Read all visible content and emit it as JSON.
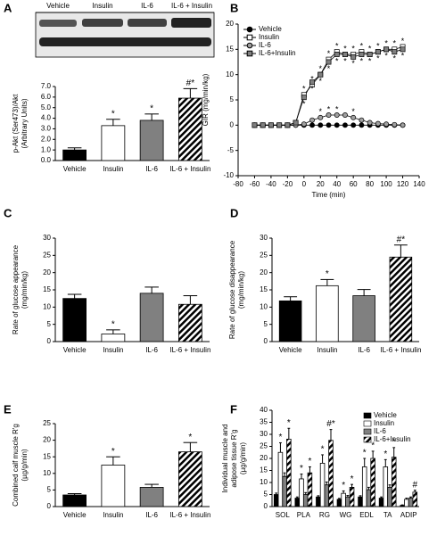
{
  "chart_data": [
    {
      "type": "bar",
      "panel": "A",
      "blot_labels": [
        "Vehicle",
        "Insulin",
        "IL-6",
        "IL-6 + Insulin"
      ],
      "ylabel": [
        "p-Akt (Ser473)/Akt",
        "(Arbitrary Units)"
      ],
      "categories": [
        "Vehicle",
        "Insulin",
        "IL-6",
        "IL-6 + Insulin"
      ],
      "values": [
        1.0,
        3.3,
        3.8,
        5.9
      ],
      "errors": [
        0.2,
        0.6,
        0.6,
        0.9
      ],
      "annotations": [
        null,
        "*",
        "*",
        "#*"
      ],
      "colors": [
        "#000000",
        "#ffffff",
        "#808080",
        "#ffffff"
      ],
      "hatched": [
        false,
        false,
        false,
        true
      ],
      "ylim": [
        0,
        7
      ],
      "yticks": [
        {
          "value": 0,
          "label": "0.0"
        },
        {
          "value": 1,
          "label": "1.0"
        },
        {
          "value": 2,
          "label": "2.0"
        },
        {
          "value": 3,
          "label": "3.0"
        },
        {
          "value": 4,
          "label": "4.0"
        },
        {
          "value": 5,
          "label": "5.0"
        },
        {
          "value": 6,
          "label": "6.0"
        },
        {
          "value": 7,
          "label": "7.0"
        }
      ]
    },
    {
      "type": "line",
      "panel": "B",
      "xlabel": "Time (min)",
      "ylabel": [
        "GIR (mg/min/kg)"
      ],
      "legend": "top-left",
      "x": [
        -60,
        -50,
        -40,
        -30,
        -20,
        -10,
        0,
        10,
        20,
        30,
        40,
        50,
        60,
        70,
        80,
        90,
        100,
        110,
        120
      ],
      "series": [
        {
          "name": "Vehicle",
          "color": "#000000",
          "marker": "circle",
          "values": [
            0,
            0,
            0,
            0,
            0,
            0,
            0,
            0,
            0,
            0,
            0,
            0,
            0,
            0,
            0,
            0,
            0,
            0,
            0
          ],
          "annotations": [
            null,
            null,
            null,
            null,
            null,
            null,
            null,
            null,
            null,
            null,
            null,
            null,
            null,
            null,
            null,
            null,
            null,
            null,
            null
          ],
          "annotation_position": "above"
        },
        {
          "name": "Insulin",
          "color": "#ffffff",
          "marker": "square",
          "values": [
            0,
            0,
            0,
            0,
            0,
            0.5,
            6,
            8,
            10,
            13,
            14.5,
            14,
            14,
            14.5,
            14,
            14.5,
            15,
            15,
            15.5
          ],
          "annotations": [
            null,
            null,
            null,
            null,
            null,
            null,
            "*",
            "*",
            "*",
            "*",
            "*",
            "*",
            "*",
            "*",
            "*",
            "*",
            "*",
            "*",
            "*"
          ],
          "annotation_position": "above"
        },
        {
          "name": "IL-6",
          "color": "#a0a0a0",
          "marker": "circle",
          "values": [
            0,
            0,
            0,
            0,
            0,
            0,
            0.2,
            1,
            1.5,
            2,
            2,
            2,
            1.5,
            1,
            0.5,
            0.3,
            0.2,
            0.1,
            0
          ],
          "annotations": [
            null,
            null,
            null,
            null,
            null,
            null,
            null,
            null,
            "*",
            "*",
            "*",
            null,
            "*",
            null,
            null,
            null,
            null,
            null,
            null
          ],
          "annotation_position": "above"
        },
        {
          "name": "IL-6+Insulin",
          "color": "#808080",
          "marker": "square",
          "values": [
            0,
            0,
            0,
            0,
            0,
            0.5,
            5.5,
            8.5,
            10,
            12.5,
            14,
            14,
            13.5,
            14,
            14,
            14.5,
            15,
            14.5,
            15
          ],
          "annotations": [
            null,
            null,
            null,
            null,
            null,
            null,
            "*",
            "*",
            "*",
            "*",
            "*",
            "*",
            "*",
            "*",
            "*",
            "*",
            "*",
            "*",
            "*"
          ],
          "annotation_position": "below"
        }
      ],
      "xlim": [
        -80,
        140
      ],
      "xticks": [
        -80,
        -60,
        -40,
        -20,
        0,
        20,
        40,
        60,
        80,
        100,
        120,
        140
      ],
      "ylim": [
        -10,
        20
      ],
      "yticks": [
        -10,
        -5,
        0,
        5,
        10,
        15,
        20
      ]
    },
    {
      "type": "bar",
      "panel": "C",
      "ylabel": [
        "Rate of glucose appearance",
        "(mg/min/kg)"
      ],
      "categories": [
        "Vehicle",
        "Insulin",
        "IL-6",
        "IL-6 + Insulin"
      ],
      "values": [
        12.5,
        2.2,
        14,
        10.8
      ],
      "errors": [
        1.2,
        1.2,
        1.8,
        2.5
      ],
      "annotations": [
        null,
        "*",
        null,
        null
      ],
      "colors": [
        "#000000",
        "#ffffff",
        "#808080",
        "#ffffff"
      ],
      "hatched": [
        false,
        false,
        false,
        true
      ],
      "ylim": [
        0,
        30
      ],
      "yticks": [
        0,
        5,
        10,
        15,
        20,
        25,
        30
      ]
    },
    {
      "type": "bar",
      "panel": "D",
      "ylabel": [
        "Rate of glucose disappearance",
        "(mg/min/kg)"
      ],
      "categories": [
        "Vehicle",
        "Insulin",
        "IL-6",
        "IL-6 + Insulin"
      ],
      "values": [
        11.8,
        16.2,
        13.3,
        24.5
      ],
      "errors": [
        1.2,
        1.8,
        1.8,
        3.5
      ],
      "annotations": [
        null,
        "*",
        null,
        "#*"
      ],
      "colors": [
        "#000000",
        "#ffffff",
        "#808080",
        "#ffffff"
      ],
      "hatched": [
        false,
        false,
        false,
        true
      ],
      "ylim": [
        0,
        30
      ],
      "yticks": [
        0,
        5,
        10,
        15,
        20,
        25,
        30
      ]
    },
    {
      "type": "bar",
      "panel": "E",
      "ylabel": [
        "Combined calf muscle R'g",
        "(µg/g/min)"
      ],
      "categories": [
        "Vehicle",
        "Insulin",
        "IL-6",
        "IL-6 + Insulin"
      ],
      "values": [
        3.5,
        12.5,
        5.8,
        16.5
      ],
      "errors": [
        0.4,
        2.5,
        0.9,
        2.8
      ],
      "annotations": [
        null,
        "*",
        null,
        "*"
      ],
      "colors": [
        "#000000",
        "#ffffff",
        "#808080",
        "#ffffff"
      ],
      "hatched": [
        false,
        false,
        false,
        true
      ],
      "ylim": [
        0,
        25
      ],
      "yticks": [
        0,
        5,
        10,
        15,
        20,
        25
      ]
    },
    {
      "type": "grouped_bar",
      "panel": "F",
      "ylabel": [
        "Individual muscle and",
        "adipose tissue R'g",
        "(µg/g/min)"
      ],
      "legend": "top-right",
      "categories": [
        "SOL",
        "PLA",
        "RG",
        "WG",
        "EDL",
        "TA",
        "ADIP"
      ],
      "series": [
        {
          "name": "Vehicle",
          "color": "#000000",
          "hatched": false,
          "values": [
            5,
            3.5,
            4,
            3,
            4,
            3.5,
            0.5
          ],
          "errors": [
            0.6,
            0.5,
            0.5,
            0.4,
            0.5,
            0.5,
            0.2
          ],
          "annotations": [
            null,
            null,
            null,
            null,
            null,
            null,
            null
          ]
        },
        {
          "name": "Insulin",
          "color": "#ffffff",
          "hatched": false,
          "values": [
            22.5,
            11.5,
            18,
            5.5,
            16.5,
            16.5,
            3
          ],
          "errors": [
            4,
            2,
            3.5,
            1,
            3.5,
            3,
            0.5
          ],
          "annotations": [
            "*",
            "*",
            "*",
            "*",
            "*",
            "*",
            null
          ]
        },
        {
          "name": "IL-6",
          "color": "#808080",
          "hatched": false,
          "values": [
            12.5,
            5,
            9,
            4,
            7,
            8,
            3.5
          ],
          "errors": [
            1.5,
            0.8,
            1.2,
            0.6,
            1,
            1,
            0.5
          ],
          "annotations": [
            null,
            null,
            null,
            null,
            null,
            null,
            null
          ]
        },
        {
          "name": "IL-6+Insulin",
          "color": "#ffffff",
          "hatched": true,
          "values": [
            28,
            14,
            27.5,
            8,
            20,
            20.5,
            6
          ],
          "errors": [
            4.5,
            2.5,
            4.5,
            1.2,
            3,
            4,
            0.8
          ],
          "annotations": [
            "*",
            "*",
            "#*",
            "*",
            "*",
            "*",
            "#"
          ]
        }
      ],
      "ylim": [
        0,
        40
      ],
      "yticks": [
        0,
        5,
        10,
        15,
        20,
        25,
        30,
        35,
        40
      ]
    }
  ]
}
